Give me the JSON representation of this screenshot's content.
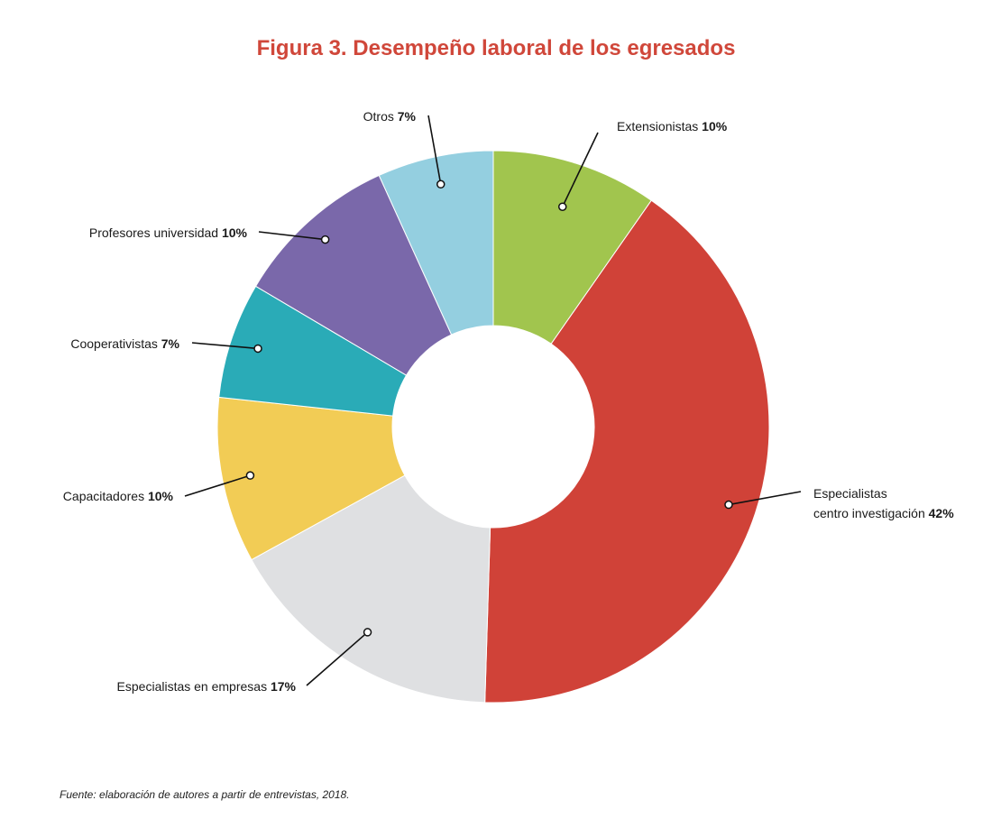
{
  "chart_data": {
    "type": "pie",
    "donut": true,
    "title": "Figura 3. Desempeño laboral de los egresados",
    "source": "Fuente: elaboración de autores a partir de entrevistas, 2018.",
    "slices": [
      {
        "label": "Extensionistas",
        "label_lines": [
          "Extensionistas"
        ],
        "value": 10,
        "value_label": "10%",
        "color": "#a1c54e"
      },
      {
        "label": "Especialistas centro investigación",
        "label_lines": [
          "Especialistas",
          "centro investigación"
        ],
        "value": 42,
        "value_label": "42%",
        "color": "#d04238"
      },
      {
        "label": "Especialistas en empresas",
        "label_lines": [
          "Especialistas en empresas"
        ],
        "value": 17,
        "value_label": "17%",
        "color": "#dfe0e2"
      },
      {
        "label": "Capacitadores",
        "label_lines": [
          "Capacitadores"
        ],
        "value": 10,
        "value_label": "10%",
        "color": "#f2cc55"
      },
      {
        "label": "Cooperativistas",
        "label_lines": [
          "Cooperativistas"
        ],
        "value": 7,
        "value_label": "7%",
        "color": "#2aabb7"
      },
      {
        "label": "Profesores universidad",
        "label_lines": [
          "Profesores universidad"
        ],
        "value": 10,
        "value_label": "10%",
        "color": "#7a68aa"
      },
      {
        "label": "Otros",
        "label_lines": [
          "Otros"
        ],
        "value": 7,
        "value_label": "7%",
        "color": "#94cfe0"
      }
    ]
  }
}
